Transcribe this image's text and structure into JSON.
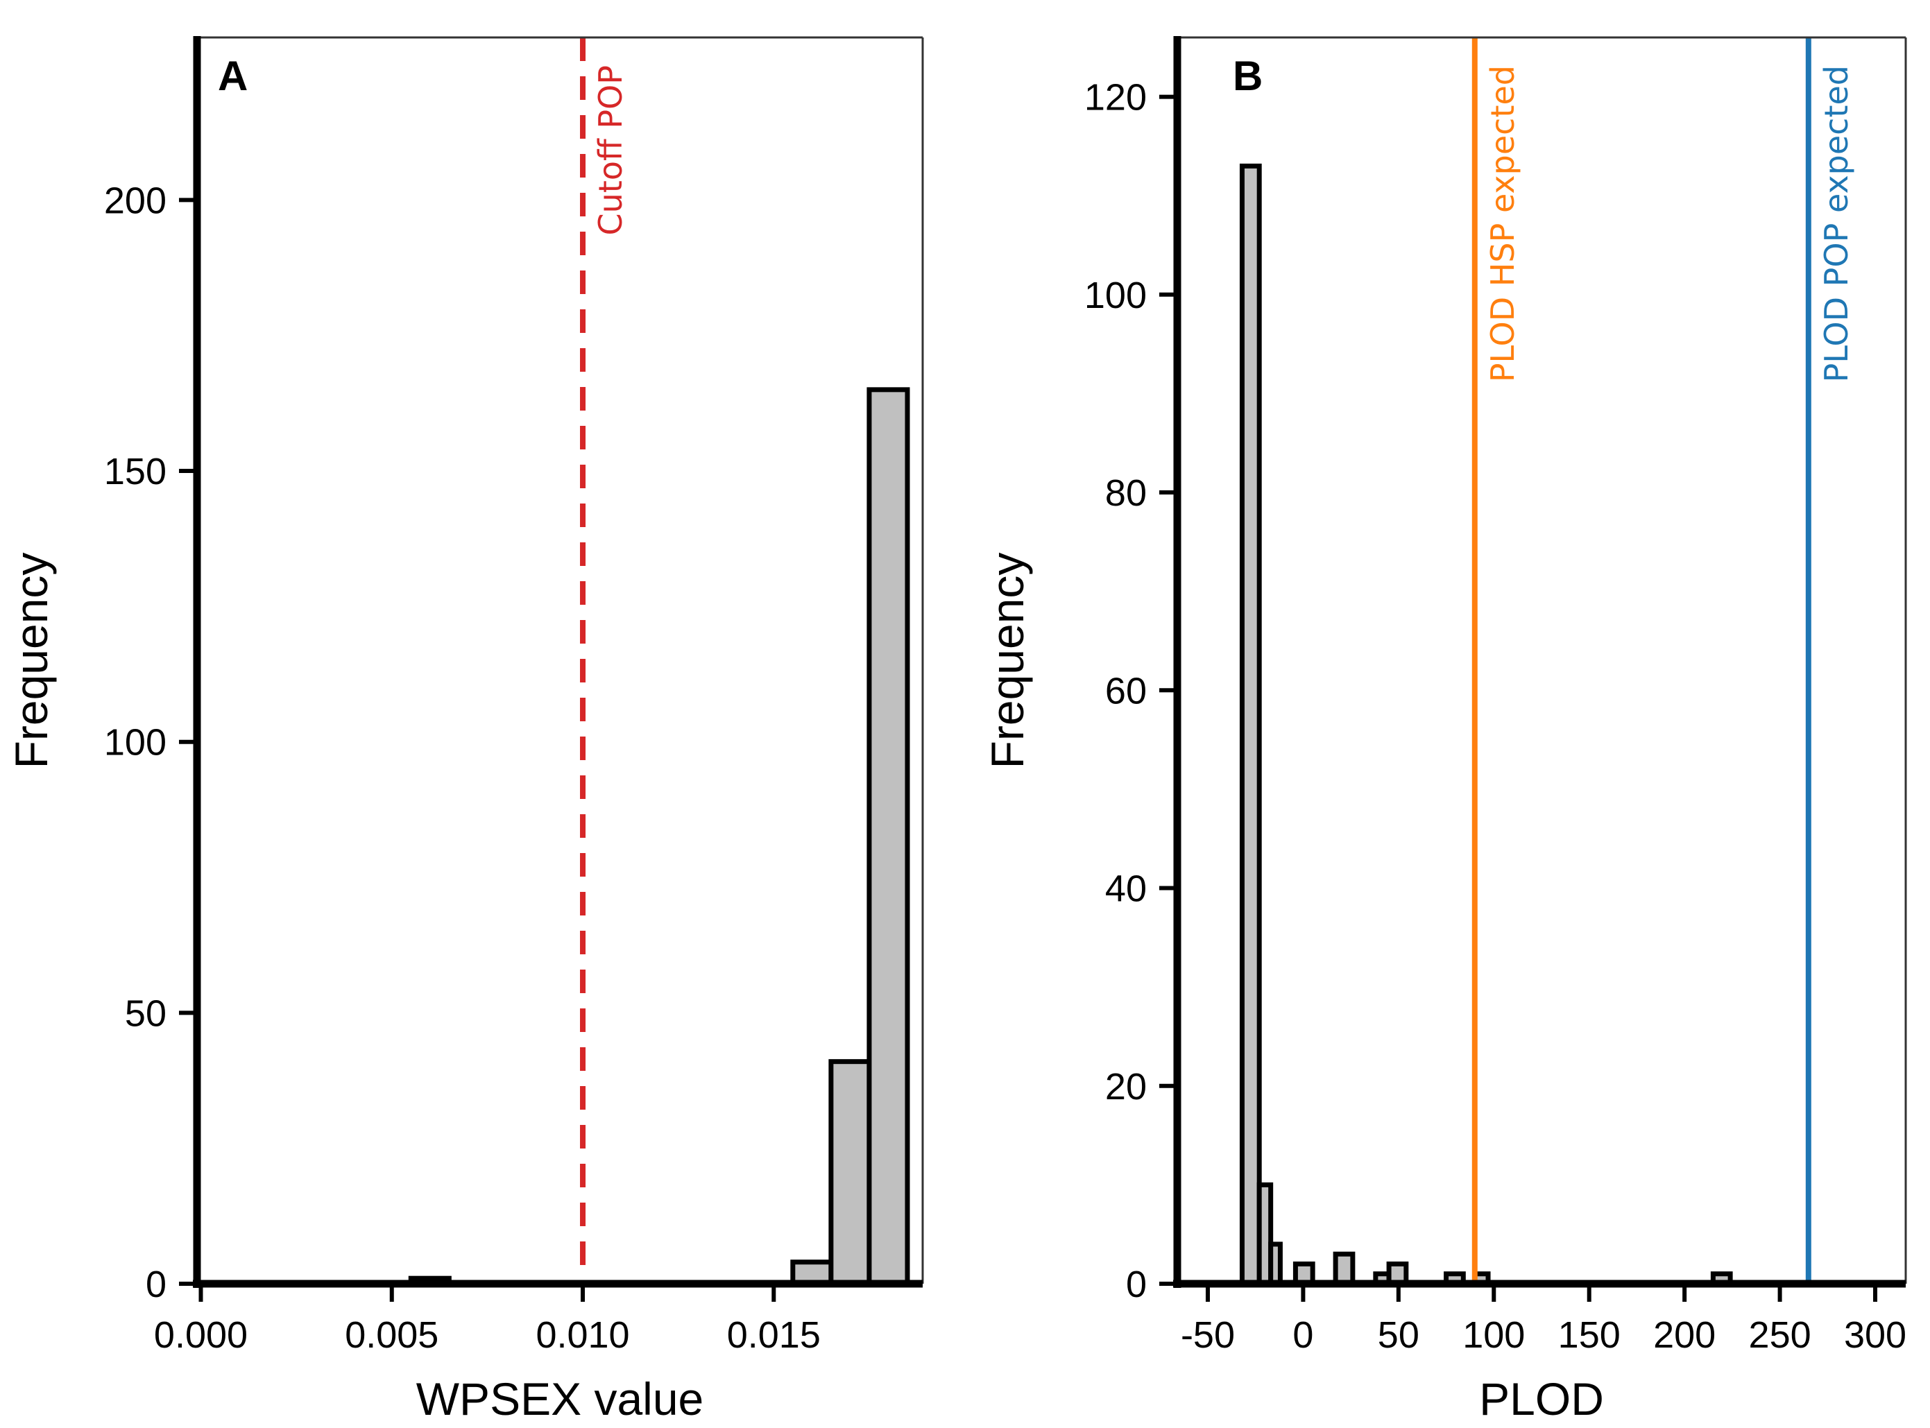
{
  "chart_data": [
    {
      "type": "bar",
      "panel_label": "A",
      "xlabel": "WPSEX value",
      "ylabel": "Frequency",
      "xlim": [
        -0.0001,
        0.0189
      ],
      "ylim": [
        0,
        230
      ],
      "xticks": [
        0.0,
        0.005,
        0.01,
        0.015
      ],
      "xtick_labels": [
        "0.000",
        "0.005",
        "0.010",
        "0.015"
      ],
      "yticks": [
        0,
        50,
        100,
        150,
        200
      ],
      "ytick_labels": [
        "0",
        "50",
        "100",
        "150",
        "200"
      ],
      "grid": false,
      "bar_fill": "#c0c0c0",
      "bar_edge": "#000000",
      "bins": [
        {
          "x0": 0.0055,
          "x1": 0.0065,
          "count": 1
        },
        {
          "x0": 0.0155,
          "x1": 0.0165,
          "count": 4
        },
        {
          "x0": 0.0165,
          "x1": 0.0175,
          "count": 41
        },
        {
          "x0": 0.0175,
          "x1": 0.0185,
          "count": 165
        }
      ],
      "reference_lines": [
        {
          "x": 0.01,
          "label": "Cutoff POP",
          "color": "#d62728",
          "style": "dashed"
        }
      ]
    },
    {
      "type": "bar",
      "panel_label": "B",
      "xlabel": "PLOD",
      "ylabel": "Frequency",
      "xlim": [
        -66,
        316
      ],
      "ylim": [
        0,
        126
      ],
      "xticks": [
        -50,
        0,
        50,
        100,
        150,
        200,
        250,
        300
      ],
      "xtick_labels": [
        "-50",
        "0",
        "50",
        "100",
        "150",
        "200",
        "250",
        "300"
      ],
      "yticks": [
        0,
        20,
        40,
        60,
        80,
        100,
        120
      ],
      "ytick_labels": [
        "0",
        "20",
        "40",
        "60",
        "80",
        "100",
        "120"
      ],
      "grid": false,
      "bar_fill": "#c0c0c0",
      "bar_edge": "#000000",
      "bins": [
        {
          "x0": -32,
          "x1": -23,
          "count": 113
        },
        {
          "x0": -23,
          "x1": -17,
          "count": 10
        },
        {
          "x0": -17,
          "x1": -12,
          "count": 4
        },
        {
          "x0": -4,
          "x1": 5,
          "count": 2
        },
        {
          "x0": 17,
          "x1": 26,
          "count": 3
        },
        {
          "x0": 38,
          "x1": 45,
          "count": 1
        },
        {
          "x0": 45,
          "x1": 54,
          "count": 2
        },
        {
          "x0": 75,
          "x1": 84,
          "count": 1
        },
        {
          "x0": 90,
          "x1": 97,
          "count": 1
        },
        {
          "x0": 215,
          "x1": 224,
          "count": 1
        }
      ],
      "reference_lines": [
        {
          "x": 90,
          "label": "PLOD HSP expected",
          "color": "#ff7f0e",
          "style": "solid"
        },
        {
          "x": 265,
          "label": "PLOD POP expected",
          "color": "#1f77b4",
          "style": "solid"
        }
      ]
    }
  ]
}
